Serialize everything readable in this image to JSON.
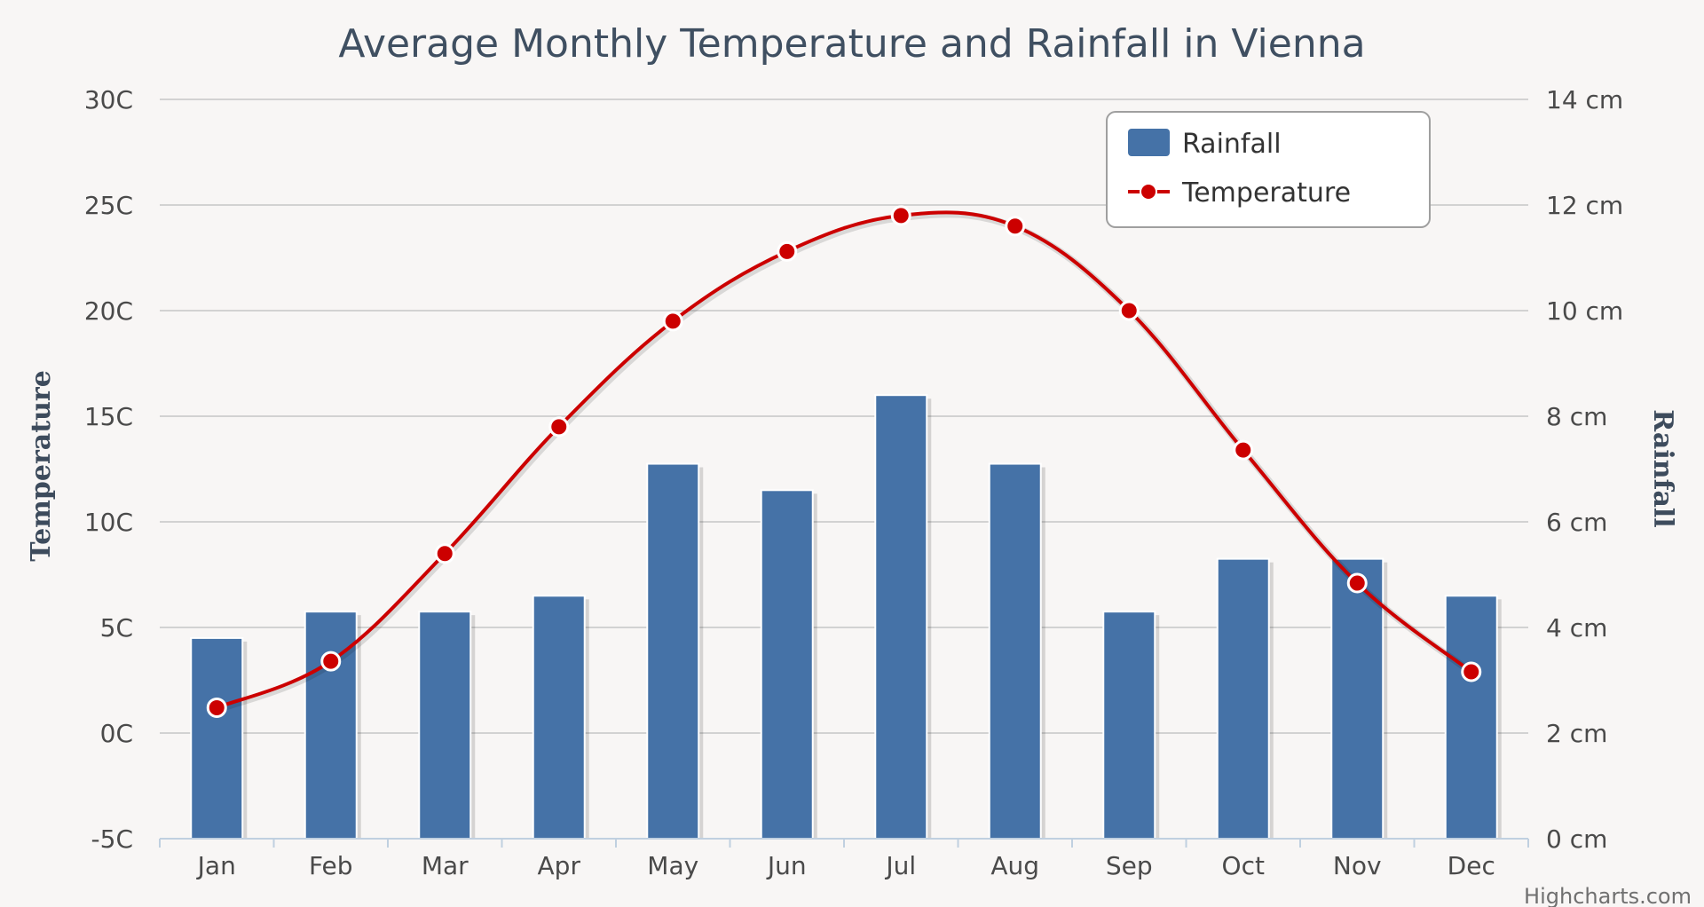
{
  "chart_data": {
    "type": "bar",
    "title": "Average Monthly Temperature and Rainfall in Vienna",
    "categories": [
      "Jan",
      "Feb",
      "Mar",
      "Apr",
      "May",
      "Jun",
      "Jul",
      "Aug",
      "Sep",
      "Oct",
      "Nov",
      "Dec"
    ],
    "series": [
      {
        "name": "Rainfall",
        "type": "bar",
        "axis": "right",
        "unit": "cm",
        "color": "#4572a7",
        "values": [
          3.8,
          4.3,
          4.3,
          4.6,
          7.1,
          6.6,
          8.4,
          7.1,
          4.3,
          5.3,
          5.3,
          4.6
        ]
      },
      {
        "name": "Temperature",
        "type": "line",
        "axis": "left",
        "unit": "C",
        "color": "#cc0000",
        "values": [
          1.2,
          3.4,
          8.5,
          14.5,
          19.5,
          22.8,
          24.5,
          24.0,
          20.0,
          13.4,
          7.1,
          2.9
        ]
      }
    ],
    "y_left": {
      "label": "Temperature",
      "ticks": [
        -5,
        0,
        5,
        10,
        15,
        20,
        25,
        30
      ],
      "tick_labels": [
        "-5C",
        "0C",
        "5C",
        "10C",
        "15C",
        "20C",
        "25C",
        "30C"
      ],
      "ylim": [
        -5,
        30
      ]
    },
    "y_right": {
      "label": "Rainfall",
      "ticks": [
        0,
        2,
        4,
        6,
        8,
        10,
        12,
        14
      ],
      "tick_labels": [
        "0 cm",
        "2 cm",
        "4 cm",
        "6 cm",
        "8 cm",
        "10 cm",
        "12 cm",
        "14 cm"
      ],
      "ylim": [
        0,
        14
      ]
    },
    "legend": {
      "position": "top-right",
      "items": [
        "Rainfall",
        "Temperature"
      ]
    },
    "grid": true
  },
  "credits": "Highcharts.com",
  "colors": {
    "background": "#f8f6f5",
    "grid": "#d2d2d2",
    "bar": "#4572a7",
    "line": "#cc0000",
    "title": "#3f4f61"
  }
}
